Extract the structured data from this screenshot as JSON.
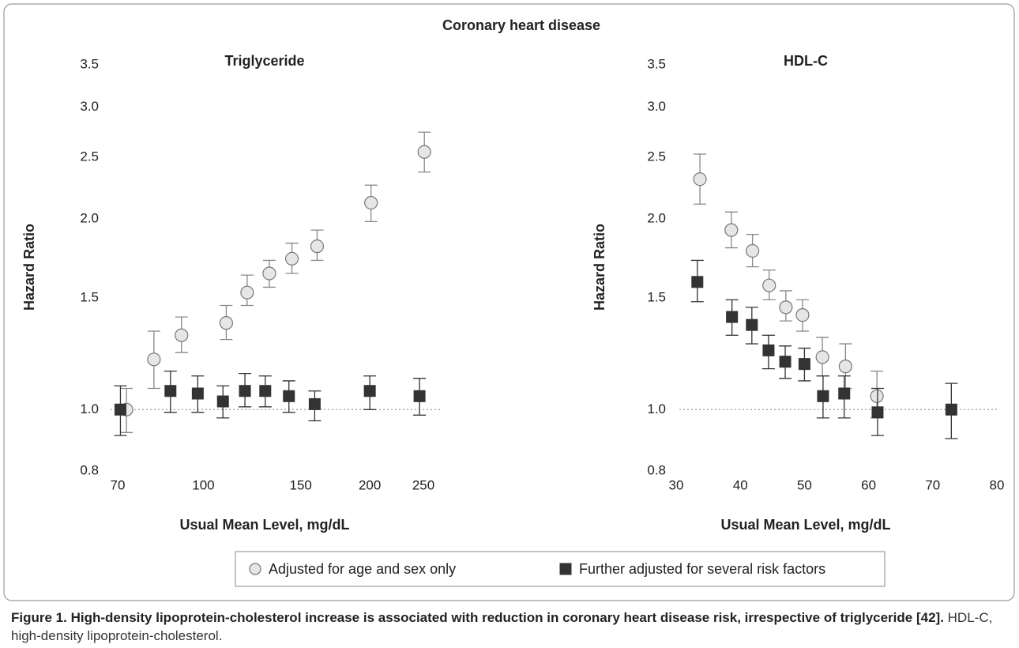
{
  "title": "Coronary heart disease",
  "chart_data": [
    {
      "type": "scatter",
      "title": "Triglyceride",
      "x_label": "Usual Mean Level, mg/dL",
      "y_label": "Hazard Ratio",
      "xscale": "log",
      "yscale": "log",
      "xlim": [
        70,
        250
      ],
      "xticks": [
        70,
        100,
        150,
        200,
        250
      ],
      "ylim": [
        0.8,
        3.5
      ],
      "yticks": [
        0.8,
        {
          "value": 1,
          "label": "1.0"
        },
        1.5,
        {
          "value": 2,
          "label": "2.0"
        },
        2.5,
        {
          "value": 3,
          "label": "3.0"
        },
        3.5
      ],
      "reference_y": 1,
      "series": [
        {
          "name": "Adjusted for age and sex only",
          "marker": "circle",
          "color": "#e6e6e6",
          "edge_color": "#777777",
          "x": [
            72.6,
            81.4,
            91.3,
            110,
            120,
            131.6,
            144.6,
            160.6,
            201,
            251
          ],
          "values": [
            1.0,
            1.2,
            1.31,
            1.37,
            1.53,
            1.64,
            1.73,
            1.81,
            2.12,
            2.55
          ],
          "lower": [
            0.92,
            1.08,
            1.23,
            1.29,
            1.46,
            1.56,
            1.64,
            1.72,
            1.98,
            2.37
          ],
          "upper": [
            1.08,
            1.33,
            1.4,
            1.46,
            1.63,
            1.72,
            1.83,
            1.92,
            2.26,
            2.74
          ]
        },
        {
          "name": "Further adjusted for several risk factors",
          "marker": "square",
          "color": "#333333",
          "edge_color": "#333333",
          "x": [
            70.8,
            87.2,
            97.7,
            108.5,
            118.9,
            129.4,
            142.8,
            159,
            200,
            246
          ],
          "values": [
            1.0,
            1.07,
            1.06,
            1.03,
            1.07,
            1.07,
            1.05,
            1.02,
            1.07,
            1.05
          ],
          "lower": [
            0.91,
            0.99,
            0.99,
            0.97,
            1.01,
            1.01,
            0.99,
            0.96,
            1.0,
            0.98
          ],
          "upper": [
            1.09,
            1.15,
            1.13,
            1.09,
            1.14,
            1.13,
            1.11,
            1.07,
            1.13,
            1.12
          ]
        }
      ]
    },
    {
      "type": "scatter",
      "title": "HDL-C",
      "x_label": "Usual Mean Level, mg/dL",
      "y_label": "Hazard Ratio",
      "xscale": "linear",
      "yscale": "log",
      "xlim": [
        30,
        80
      ],
      "xticks": [
        30,
        40,
        50,
        60,
        70,
        80
      ],
      "ylim": [
        0.8,
        3.5
      ],
      "yticks": [
        0.8,
        {
          "value": 1,
          "label": "1.0"
        },
        1.5,
        {
          "value": 2,
          "label": "2.0"
        },
        2.5,
        {
          "value": 3,
          "label": "3.0"
        },
        3.5
      ],
      "reference_y": 1,
      "series": [
        {
          "marker": "circle",
          "color": "#e6e6e6",
          "edge_color": "#777777",
          "x": [
            33.7,
            38.6,
            41.9,
            44.5,
            47.1,
            49.7,
            52.8,
            56.4,
            61.3
          ],
          "values": [
            2.31,
            1.92,
            1.78,
            1.57,
            1.45,
            1.41,
            1.21,
            1.17,
            1.05
          ],
          "lower": [
            2.11,
            1.8,
            1.68,
            1.49,
            1.38,
            1.33,
            1.13,
            1.08,
            0.97
          ],
          "upper": [
            2.53,
            2.05,
            1.89,
            1.66,
            1.54,
            1.49,
            1.3,
            1.27,
            1.15
          ]
        },
        {
          "marker": "square",
          "color": "#333333",
          "edge_color": "#333333",
          "x": [
            33.3,
            38.7,
            41.8,
            44.4,
            47.0,
            50.0,
            52.9,
            56.2,
            61.4,
            72.9
          ],
          "values": [
            1.59,
            1.4,
            1.36,
            1.24,
            1.19,
            1.18,
            1.05,
            1.06,
            0.99,
            1.0
          ],
          "lower": [
            1.48,
            1.31,
            1.27,
            1.16,
            1.12,
            1.11,
            0.97,
            0.97,
            0.91,
            0.9
          ],
          "upper": [
            1.72,
            1.49,
            1.45,
            1.31,
            1.26,
            1.25,
            1.13,
            1.13,
            1.08,
            1.1
          ]
        }
      ]
    }
  ],
  "caption": {
    "label": "Figure 1. High-density lipoprotein-cholesterol increase is associated with reduction in coronary heart disease risk, irrespective of triglyceride [42].",
    "text": "HDL-C, high-density lipoprotein-cholesterol."
  }
}
